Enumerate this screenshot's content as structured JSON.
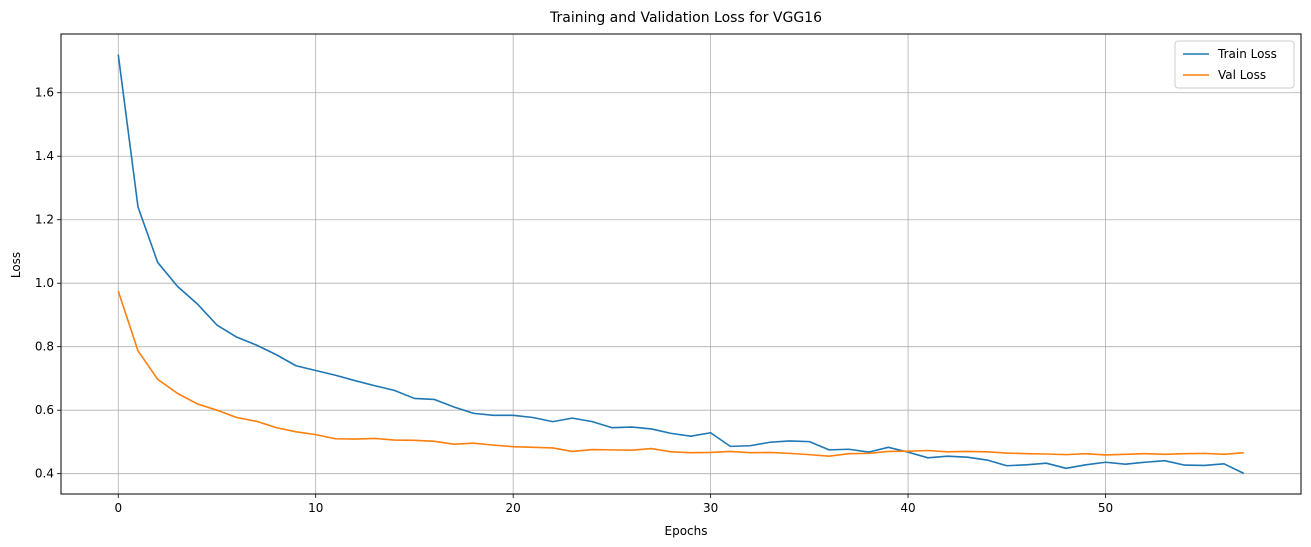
{
  "chart_data": {
    "type": "line",
    "title": "Training and Validation Loss for VGG16",
    "xlabel": "Epochs",
    "ylabel": "Loss",
    "xlim": [
      -2.9,
      59.9
    ],
    "ylim": [
      0.336,
      1.785
    ],
    "xticks": [
      0,
      10,
      20,
      30,
      40,
      50
    ],
    "yticks": [
      0.4,
      0.6,
      0.8,
      1.0,
      1.2,
      1.4,
      1.6
    ],
    "grid": true,
    "legend_position": "top-right",
    "x": [
      0,
      1,
      2,
      3,
      4,
      5,
      6,
      7,
      8,
      9,
      10,
      11,
      12,
      13,
      14,
      15,
      16,
      17,
      18,
      19,
      20,
      21,
      22,
      23,
      24,
      25,
      26,
      27,
      28,
      29,
      30,
      31,
      32,
      33,
      34,
      35,
      36,
      37,
      38,
      39,
      40,
      41,
      42,
      43,
      44,
      45,
      46,
      47,
      48,
      49,
      50,
      51,
      52,
      53,
      54,
      55,
      56,
      57
    ],
    "series": [
      {
        "name": "Train Loss",
        "color": "#1f77b4",
        "values": [
          1.72,
          1.24,
          1.065,
          0.99,
          0.935,
          0.868,
          0.83,
          0.805,
          0.775,
          0.74,
          0.725,
          0.71,
          0.693,
          0.677,
          0.662,
          0.637,
          0.634,
          0.61,
          0.59,
          0.584,
          0.584,
          0.577,
          0.564,
          0.575,
          0.564,
          0.545,
          0.547,
          0.541,
          0.527,
          0.518,
          0.529,
          0.486,
          0.488,
          0.499,
          0.503,
          0.501,
          0.475,
          0.477,
          0.468,
          0.483,
          0.468,
          0.45,
          0.455,
          0.452,
          0.443,
          0.425,
          0.428,
          0.433,
          0.417,
          0.428,
          0.436,
          0.43,
          0.436,
          0.441,
          0.427,
          0.426,
          0.431,
          0.401
        ]
      },
      {
        "name": "Val Loss",
        "color": "#ff7f0e",
        "values": [
          0.975,
          0.787,
          0.697,
          0.653,
          0.62,
          0.6,
          0.577,
          0.565,
          0.545,
          0.532,
          0.523,
          0.51,
          0.509,
          0.511,
          0.506,
          0.505,
          0.502,
          0.493,
          0.496,
          0.49,
          0.485,
          0.483,
          0.481,
          0.47,
          0.476,
          0.475,
          0.474,
          0.479,
          0.469,
          0.466,
          0.467,
          0.47,
          0.466,
          0.467,
          0.464,
          0.46,
          0.455,
          0.463,
          0.464,
          0.47,
          0.471,
          0.473,
          0.469,
          0.47,
          0.469,
          0.465,
          0.463,
          0.462,
          0.46,
          0.463,
          0.459,
          0.461,
          0.463,
          0.461,
          0.463,
          0.464,
          0.461,
          0.466
        ]
      }
    ]
  }
}
